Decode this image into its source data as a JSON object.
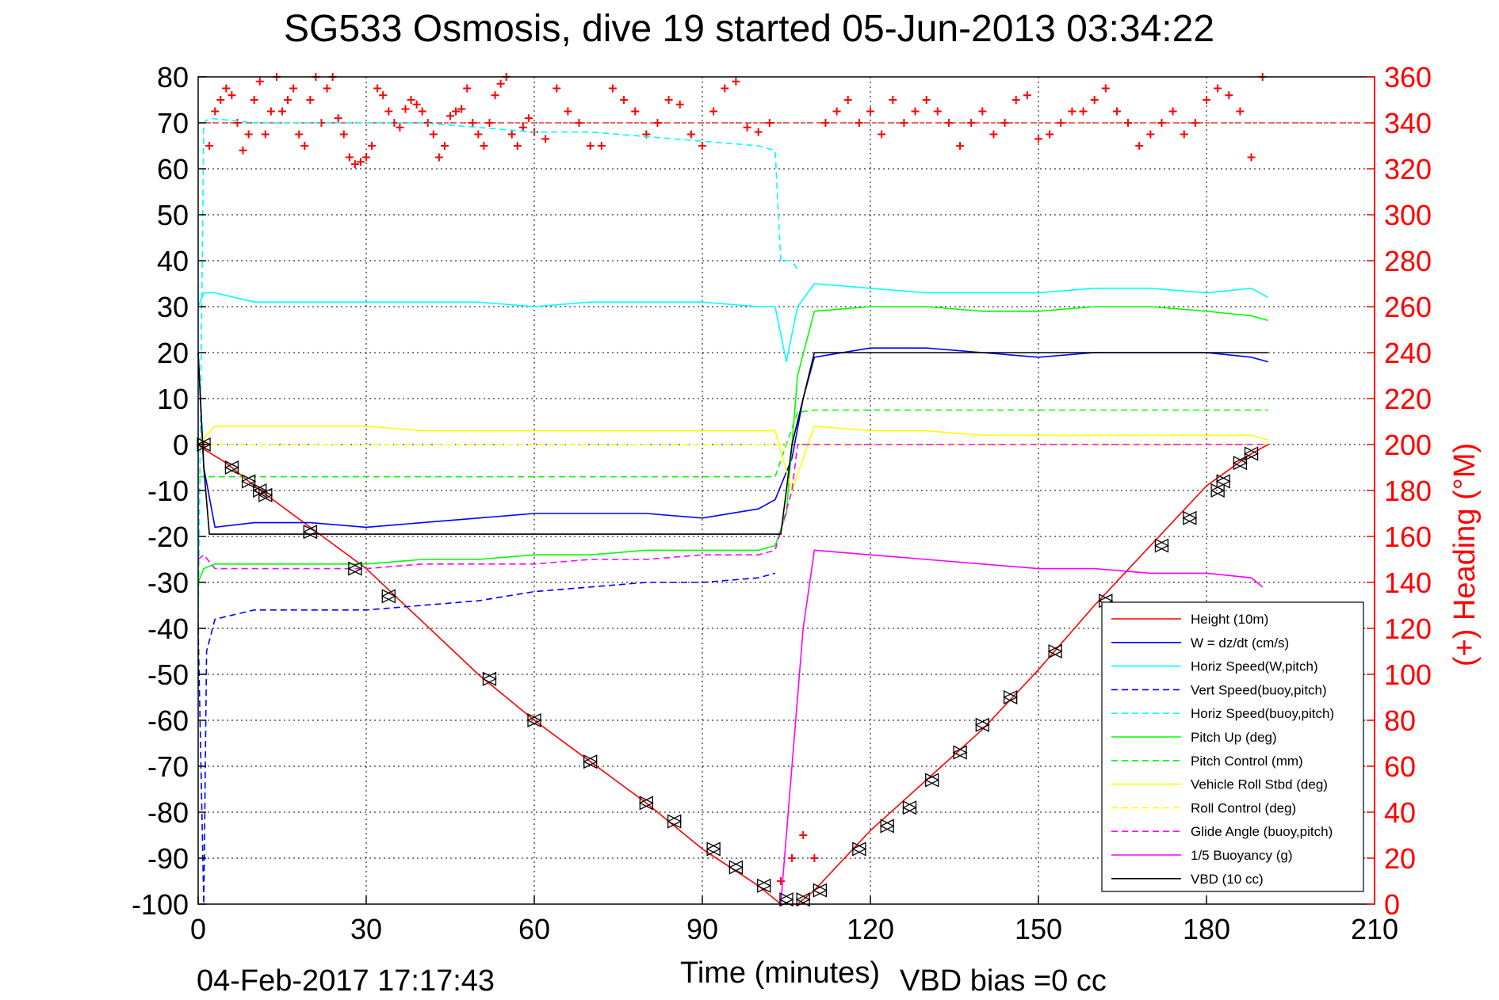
{
  "chart_data": {
    "type": "line",
    "title": "SG533 Osmosis, dive 19 started 05-Jun-2013 03:34:22",
    "xlabel": "Time (minutes)",
    "ylabel_right": "(+) Heading (°M)",
    "footer_timestamp": "04-Feb-2017 17:17:43",
    "footer_note": "VBD bias =0 cc",
    "xlim": [
      0,
      210
    ],
    "ylim": [
      -100,
      80
    ],
    "ylim_right": [
      0,
      360
    ],
    "grid": true,
    "legend_position": "lower-right",
    "x_ticks": [
      "0",
      "30",
      "60",
      "90",
      "120",
      "150",
      "180",
      "210"
    ],
    "y_ticks": [
      "80",
      "70",
      "60",
      "50",
      "40",
      "30",
      "20",
      "10",
      "0",
      "-10",
      "-20",
      "-30",
      "-40",
      "-50",
      "-60",
      "-70",
      "-80",
      "-90",
      "-100"
    ],
    "y_right_ticks": [
      "360",
      "340",
      "320",
      "300",
      "280",
      "260",
      "240",
      "220",
      "200",
      "180",
      "160",
      "140",
      "120",
      "100",
      "80",
      "60",
      "40",
      "20",
      "0"
    ],
    "colors": {
      "red": "#ff0000",
      "blue": "#0000ff",
      "cyan": "#00ffff",
      "green": "#00ff00",
      "yellow": "#ffff00",
      "magenta": "#ff00ff",
      "black": "#000000"
    },
    "series": [
      {
        "name": "Height (10m)",
        "color": "#ff0000",
        "dash": false,
        "x": [
          0,
          1,
          5,
          10,
          20,
          30,
          50,
          60,
          70,
          80,
          90,
          100,
          104,
          107,
          110,
          120,
          130,
          140,
          150,
          160,
          170,
          180,
          188,
          191
        ],
        "y": [
          0,
          -1,
          -4,
          -9,
          -18,
          -27,
          -50,
          -60,
          -69,
          -78,
          -88,
          -96,
          -100,
          -100,
          -97,
          -84,
          -73,
          -62,
          -49,
          -35,
          -22,
          -9,
          -2,
          0
        ]
      },
      {
        "name": "W = dz/dt (cm/s)",
        "color": "#0000ff",
        "dash": false,
        "x": [
          0,
          1,
          3,
          10,
          20,
          30,
          40,
          50,
          60,
          70,
          80,
          90,
          100,
          103,
          106,
          108,
          110,
          120,
          130,
          140,
          150,
          160,
          170,
          180,
          188,
          191
        ],
        "y": [
          20,
          -5,
          -18,
          -17,
          -17,
          -18,
          -17,
          -16,
          -15,
          -15,
          -15,
          -16,
          -14,
          -12,
          -3,
          10,
          19,
          21,
          21,
          20,
          19,
          20,
          20,
          20,
          19,
          18
        ]
      },
      {
        "name": "Horiz Speed(W,pitch)",
        "color": "#00ffff",
        "dash": false,
        "x": [
          0,
          1,
          3,
          10,
          20,
          30,
          40,
          50,
          60,
          70,
          80,
          90,
          100,
          103,
          105,
          107,
          110,
          120,
          130,
          140,
          150,
          160,
          170,
          180,
          188,
          191
        ],
        "y": [
          30,
          33,
          33,
          31,
          31,
          31,
          31,
          31,
          30,
          31,
          31,
          31,
          30,
          30,
          18,
          30,
          35,
          34,
          33,
          33,
          33,
          34,
          34,
          33,
          34,
          32
        ]
      },
      {
        "name": "Vert Speed(buoy,pitch)",
        "color": "#0000ff",
        "dash": true,
        "x": [
          0,
          1,
          1.5,
          3,
          10,
          20,
          30,
          40,
          50,
          60,
          70,
          80,
          90,
          100,
          103
        ],
        "y": [
          -40,
          -100,
          -45,
          -38,
          -36,
          -36,
          -36,
          -35,
          -34,
          -32,
          -31,
          -30,
          -30,
          -29,
          -28
        ]
      },
      {
        "name": "Horiz Speed(buoy,pitch)",
        "color": "#00ffff",
        "dash": true,
        "x": [
          0,
          1,
          2,
          10,
          20,
          30,
          40,
          50,
          60,
          70,
          80,
          90,
          100,
          103,
          104,
          106,
          107
        ],
        "y": [
          -40,
          70,
          71,
          70,
          70,
          70,
          70,
          69,
          68,
          68,
          67,
          66,
          65,
          64,
          40,
          40,
          38
        ]
      },
      {
        "name": "Pitch Up (deg)",
        "color": "#00ff00",
        "dash": false,
        "x": [
          0,
          1,
          3,
          10,
          20,
          30,
          40,
          50,
          60,
          70,
          80,
          90,
          100,
          103,
          105,
          107,
          110,
          120,
          130,
          140,
          150,
          160,
          170,
          180,
          188,
          191
        ],
        "y": [
          -30,
          -27,
          -26,
          -26,
          -26,
          -26,
          -25,
          -25,
          -24,
          -24,
          -23,
          -23,
          -23,
          -22,
          -15,
          15,
          29,
          30,
          30,
          29,
          29,
          30,
          30,
          29,
          28,
          27
        ]
      },
      {
        "name": "Pitch Control (mm)",
        "color": "#00ff00",
        "dash": true,
        "x": [
          0,
          3,
          103,
          107,
          110,
          191
        ],
        "y": [
          -7,
          -7,
          -7,
          7,
          7.5,
          7.5
        ]
      },
      {
        "name": "Vehicle Roll Stbd (deg)",
        "color": "#ffff00",
        "dash": false,
        "x": [
          0,
          3,
          10,
          20,
          30,
          40,
          50,
          60,
          70,
          80,
          90,
          100,
          103,
          106,
          110,
          120,
          130,
          140,
          150,
          160,
          170,
          180,
          188,
          191
        ],
        "y": [
          0,
          4,
          4,
          4,
          4,
          3,
          3,
          3,
          3,
          3,
          3,
          3,
          3,
          -10,
          4,
          3,
          3,
          2,
          2,
          2,
          2,
          2,
          2,
          1
        ]
      },
      {
        "name": "Roll Control (deg)",
        "color": "#ffff00",
        "dash": true,
        "x": [
          0,
          3,
          103,
          107,
          191
        ],
        "y": [
          0,
          0,
          0,
          0,
          0
        ]
      },
      {
        "name": "Glide Angle (buoy,pitch)",
        "color": "#ff00ff",
        "dash": true,
        "x": [
          0,
          1,
          3,
          10,
          20,
          30,
          40,
          50,
          60,
          70,
          80,
          90,
          100,
          103,
          106,
          107,
          110,
          191
        ],
        "y": [
          -25,
          -24,
          -27,
          -27,
          -27,
          -27,
          -26,
          -26,
          -26,
          -25,
          -25,
          -24,
          -24,
          -23,
          -10,
          0,
          0,
          0
        ]
      },
      {
        "name": "1/5 Buoyancy (g)",
        "color": "#ff00ff",
        "dash": false,
        "x": [
          104,
          108,
          110,
          120,
          130,
          140,
          150,
          160,
          170,
          180,
          188,
          190
        ],
        "y": [
          -100,
          -40,
          -23,
          -24,
          -25,
          -26,
          -27,
          -27,
          -28,
          -28,
          -29,
          -31
        ]
      },
      {
        "name": "VBD (10 cc)",
        "color": "#000000",
        "dash": false,
        "x": [
          0,
          1,
          2,
          104,
          105,
          106,
          108,
          110,
          191
        ],
        "y": [
          20,
          -5,
          -19.5,
          -19.5,
          -10,
          0,
          10,
          20,
          20
        ]
      }
    ],
    "heading_reference_deg": 340,
    "heading_samples": {
      "axis": "right",
      "name": "Heading (+)",
      "x": [
        1,
        2,
        3,
        4,
        5,
        6,
        7,
        8,
        9,
        10,
        11,
        12,
        13,
        14,
        15,
        16,
        17,
        18,
        19,
        20,
        21,
        22,
        23,
        24,
        25,
        26,
        27,
        28,
        29,
        30,
        31,
        32,
        33,
        34,
        35,
        36,
        37,
        38,
        39,
        40,
        41,
        42,
        43,
        44,
        45,
        46,
        47,
        48,
        49,
        50,
        51,
        52,
        53,
        54,
        55,
        56,
        57,
        58,
        59,
        60,
        62,
        64,
        66,
        68,
        70,
        72,
        74,
        76,
        78,
        80,
        82,
        84,
        86,
        88,
        90,
        92,
        94,
        96,
        98,
        100,
        102,
        104,
        106,
        108,
        110,
        112,
        114,
        116,
        118,
        120,
        122,
        124,
        126,
        128,
        130,
        132,
        134,
        136,
        138,
        140,
        142,
        144,
        146,
        148,
        150,
        152,
        154,
        156,
        158,
        160,
        162,
        164,
        166,
        168,
        170,
        172,
        174,
        176,
        178,
        180,
        182,
        184,
        186,
        188,
        190
      ],
      "y": [
        200,
        330,
        345,
        350,
        355,
        352,
        340,
        328,
        335,
        350,
        358,
        335,
        345,
        360,
        345,
        350,
        355,
        335,
        330,
        350,
        360,
        340,
        355,
        360,
        342,
        335,
        325,
        322,
        323,
        325,
        330,
        355,
        352,
        345,
        340,
        338,
        346,
        350,
        348,
        345,
        340,
        335,
        325,
        330,
        343,
        345,
        346,
        355,
        340,
        335,
        330,
        340,
        352,
        357,
        360,
        335,
        330,
        338,
        342,
        336,
        333,
        355,
        345,
        340,
        330,
        330,
        355,
        350,
        345,
        335,
        340,
        350,
        348,
        335,
        330,
        345,
        355,
        358,
        338,
        336,
        340,
        10,
        20,
        30,
        20,
        340,
        345,
        350,
        340,
        345,
        335,
        350,
        340,
        345,
        350,
        345,
        340,
        330,
        340,
        345,
        335,
        340,
        350,
        352,
        333,
        335,
        340,
        345,
        345,
        350,
        355,
        345,
        340,
        330,
        335,
        340,
        345,
        335,
        340,
        350,
        355,
        352,
        345,
        325,
        360
      ]
    },
    "legend_entries": [
      "Height (10m)",
      "W = dz/dt (cm/s)",
      "Horiz Speed(W,pitch)",
      "Vert Speed(buoy,pitch)",
      "Horiz Speed(buoy,pitch)",
      "Pitch Up (deg)",
      "Pitch Control (mm)",
      "Vehicle Roll Stbd (deg)",
      "Roll Control (deg)",
      "Glide Angle (buoy,pitch)",
      "1/5 Buoyancy (g)",
      "VBD (10 cc)"
    ],
    "triangle_markers": {
      "x": [
        1,
        6,
        9,
        11,
        12,
        20,
        28,
        34,
        52,
        60,
        70,
        80,
        85,
        92,
        96,
        101,
        105,
        108,
        111,
        118,
        123,
        127,
        131,
        136,
        140,
        145,
        153,
        162,
        172,
        177,
        182,
        183,
        186,
        188
      ],
      "y": [
        0,
        -5,
        -8,
        -10,
        -11,
        -19,
        -27,
        -33,
        -51,
        -60,
        -69,
        -78,
        -82,
        -88,
        -92,
        -96,
        -99,
        -99,
        -97,
        -88,
        -83,
        -79,
        -73,
        -67,
        -61,
        -55,
        -45,
        -34,
        -22,
        -16,
        -10,
        -8,
        -4,
        -2
      ]
    }
  }
}
